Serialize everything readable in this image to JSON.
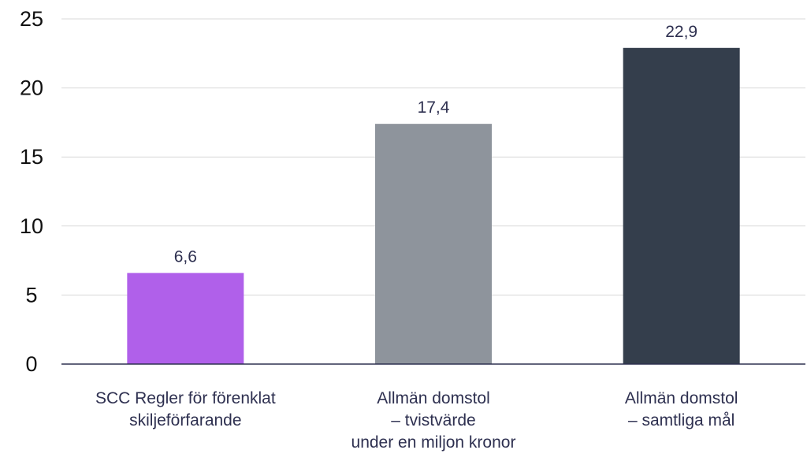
{
  "chart_data": {
    "type": "bar",
    "title": "",
    "xlabel": "",
    "ylabel": "",
    "ylim": [
      0,
      25
    ],
    "yticks": [
      "0",
      "5",
      "10",
      "15",
      "20",
      "25"
    ],
    "grid": true,
    "legend": "none",
    "categories": [
      [
        "SCC Regler för förenklat",
        "skiljeförfarande"
      ],
      [
        "Allmän domstol",
        "– tvistvärde",
        "under en miljon kronor"
      ],
      [
        "Allmän domstol",
        "– samtliga mål"
      ]
    ],
    "values": [
      6.6,
      17.4,
      22.9
    ],
    "value_labels": [
      "6,6",
      "17,4",
      "22,9"
    ],
    "colors": [
      "#b060ea",
      "#8e949c",
      "#343e4c"
    ]
  }
}
